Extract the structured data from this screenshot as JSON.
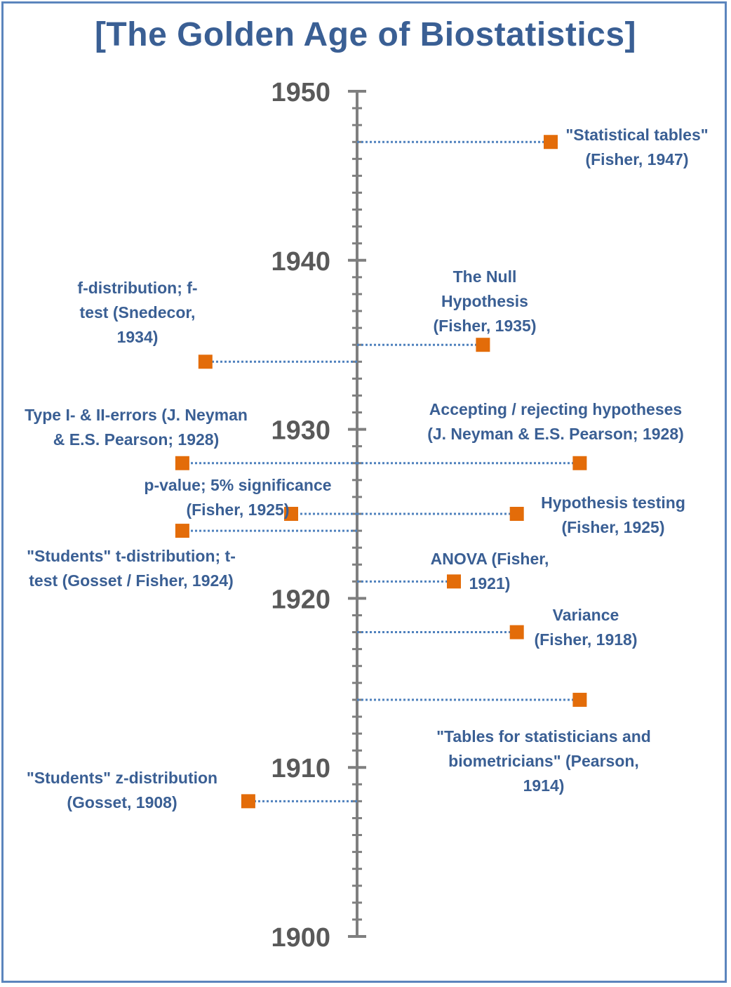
{
  "chart_data": {
    "type": "scatter",
    "title": "[The Golden Age of Biostatistics]",
    "axis": {
      "orientation": "vertical",
      "ylim": [
        1900,
        1950
      ],
      "ticks": [
        1900,
        1910,
        1920,
        1930,
        1940,
        1950
      ],
      "minor_step": 1
    },
    "colors": {
      "marker": "#e36c09",
      "connector": "#4f81bd",
      "axis": "#7f7f7f",
      "text": "#3a5f94",
      "frame": "#5b85bd"
    },
    "events": [
      {
        "year": 1947,
        "side": "right",
        "offset": 0.4,
        "label": "\"Statistical tables\"\n(Fisher, 1947)"
      },
      {
        "year": 1935,
        "side": "right",
        "offset": 0.26,
        "label": "The Null\nHypothesis\n(Fisher, 1935)"
      },
      {
        "year": 1934,
        "side": "left",
        "offset": 0.46,
        "label": "f-distribution; f-\ntest (Snedecor,\n1934)"
      },
      {
        "year": 1928,
        "side": "left",
        "offset": 0.53,
        "label": "Type I- & II-errors (J. Neyman\n& E.S. Pearson; 1928)"
      },
      {
        "year": 1928,
        "side": "right",
        "offset": 0.46,
        "label": "Accepting / rejecting hypotheses\n(J. Neyman & E.S. Pearson; 1928)"
      },
      {
        "year": 1925,
        "side": "left",
        "offset": 0.2,
        "label": "p-value; 5% significance\n(Fisher, 1925)"
      },
      {
        "year": 1925,
        "side": "right",
        "offset": 0.33,
        "label": "Hypothesis testing\n(Fisher, 1925)"
      },
      {
        "year": 1924,
        "side": "left",
        "offset": 0.53,
        "label": "\"Students\" t-distribution; t-\ntest (Gosset / Fisher, 1924)"
      },
      {
        "year": 1921,
        "side": "right",
        "offset": 0.2,
        "label": "ANOVA (Fisher,\n1921)"
      },
      {
        "year": 1918,
        "side": "right",
        "offset": 0.33,
        "label": "Variance\n(Fisher, 1918)"
      },
      {
        "year": 1914,
        "side": "right",
        "offset": 0.46,
        "label": "\"Tables for statisticians and\nbiometricians\" (Pearson,\n1914)"
      },
      {
        "year": 1908,
        "side": "left",
        "offset": 0.33,
        "label": "\"Students\" z-distribution\n(Gosset, 1908)"
      }
    ]
  }
}
